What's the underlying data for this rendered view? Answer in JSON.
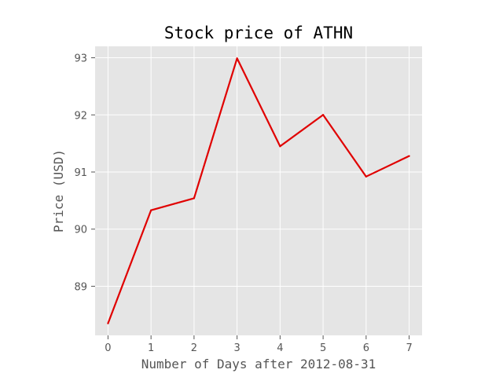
{
  "chart_data": {
    "type": "line",
    "title": "Stock price of ATHN",
    "xlabel": "Number of Days after 2012-08-31",
    "ylabel": "Price (USD)",
    "x": [
      0,
      1,
      2,
      3,
      4,
      5,
      6,
      7
    ],
    "series": [
      {
        "values": [
          88.35,
          90.33,
          90.54,
          92.99,
          91.45,
          92.0,
          90.92,
          91.28
        ],
        "color": "#e00000"
      }
    ],
    "xticks": [
      "0",
      "1",
      "2",
      "3",
      "4",
      "5",
      "6",
      "7"
    ],
    "yticks": [
      "89",
      "90",
      "91",
      "92",
      "93"
    ],
    "xlim": [
      -0.3,
      7.3
    ],
    "ylim": [
      88.14,
      93.2
    ],
    "grid": true,
    "style": {
      "background": "#e5e5e5",
      "grid_color": "#ffffff",
      "tick_color": "#555555"
    }
  }
}
